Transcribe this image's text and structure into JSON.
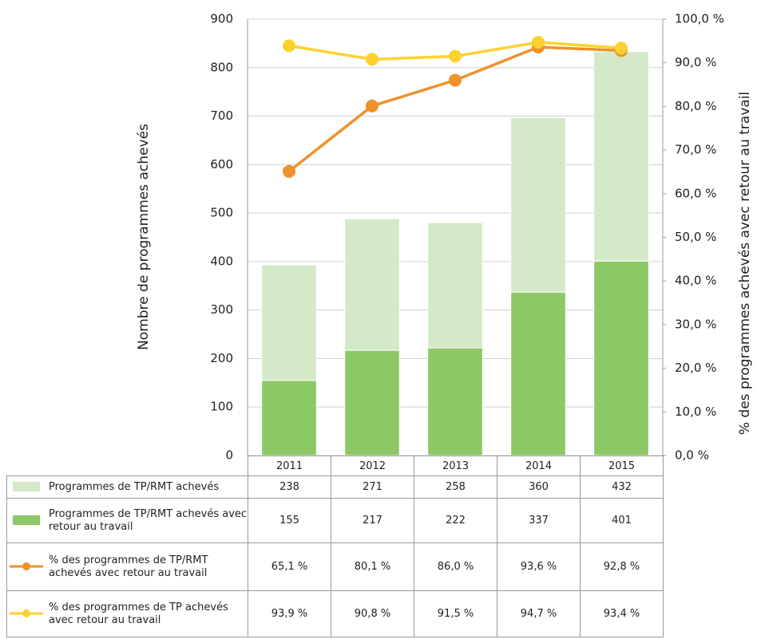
{
  "chart_data": {
    "type": "bar",
    "categories": [
      "2011",
      "2012",
      "2013",
      "2014",
      "2015"
    ],
    "ylabel": "Nombre de programmes achevés",
    "y2label": "% des programmes achevés avec retour au travail",
    "ylim": [
      0,
      900
    ],
    "yticks": [
      0,
      100,
      200,
      300,
      400,
      500,
      600,
      700,
      800,
      900
    ],
    "y2lim": [
      0,
      100
    ],
    "y2ticks": [
      {
        "value": 0,
        "label": "0,0 %"
      },
      {
        "value": 10,
        "label": "10,0 %"
      },
      {
        "value": 20,
        "label": "20,0 %"
      },
      {
        "value": 30,
        "label": "30,0 %"
      },
      {
        "value": 40,
        "label": "40,0 %"
      },
      {
        "value": 50,
        "label": "50,0 %"
      },
      {
        "value": 60,
        "label": "60,0 %"
      },
      {
        "value": 70,
        "label": "70,0 %"
      },
      {
        "value": 80,
        "label": "80,0 %"
      },
      {
        "value": 90,
        "label": "90,0 %"
      },
      {
        "value": 100,
        "label": "100,0 %"
      }
    ],
    "grid": true,
    "stacked": true,
    "series": [
      {
        "name": "Programmes de TP/RMT achevés",
        "color": "#d3e9c8",
        "type": "bar",
        "values": [
          238,
          271,
          258,
          360,
          432
        ]
      },
      {
        "name": "Programmes de TP/RMT achevés avec retour au travail",
        "color": "#8cc866",
        "type": "bar",
        "values": [
          155,
          217,
          222,
          337,
          401
        ]
      },
      {
        "name": "% des programmes de TP/RMT achevés avec retour au travail",
        "color": "#f0912c",
        "type": "line",
        "axis": "y2",
        "values": [
          65.1,
          80.1,
          86.0,
          93.6,
          92.8
        ],
        "value_labels": [
          "65,1 %",
          "80,1 %",
          "86,0 %",
          "93,6 %",
          "92,8 %"
        ]
      },
      {
        "name": "% des programmes de TP achevés avec retour au travail",
        "color": "#fdd22f",
        "type": "line",
        "axis": "y2",
        "values": [
          93.9,
          90.8,
          91.5,
          94.7,
          93.4
        ],
        "value_labels": [
          "93,9 %",
          "90,8 %",
          "91,5 %",
          "94,7 %",
          "93,4 %"
        ]
      }
    ]
  }
}
